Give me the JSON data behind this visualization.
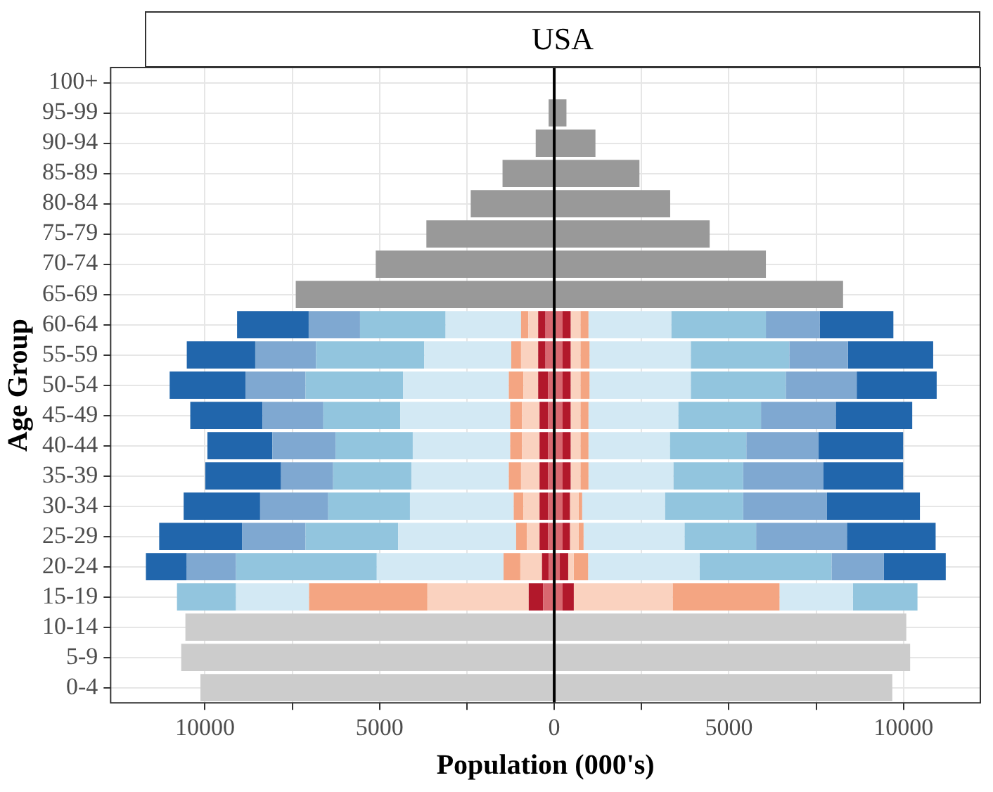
{
  "chart_data": {
    "type": "bar",
    "orientation": "horizontal",
    "stacked": true,
    "title": "USA",
    "xlabel": "Population (000's)",
    "ylabel": "Age Group",
    "categories": [
      "100+",
      "95-99",
      "90-94",
      "85-89",
      "80-84",
      "75-79",
      "70-74",
      "65-69",
      "60-64",
      "55-59",
      "50-54",
      "45-49",
      "40-44",
      "35-39",
      "30-34",
      "25-29",
      "20-24",
      "15-19",
      "10-14",
      "5-9",
      "0-4"
    ],
    "xlim": [
      -12700,
      12200
    ],
    "xticks": [
      {
        "value": -10000,
        "label": "10000"
      },
      {
        "value": -7500,
        "label": null
      },
      {
        "value": -5000,
        "label": "5000"
      },
      {
        "value": -2500,
        "label": null
      },
      0,
      {
        "value": 2500,
        "label": null
      },
      5000,
      {
        "value": 7500,
        "label": null
      },
      10000
    ],
    "grid": true,
    "legend": false,
    "ref_lines": [
      {
        "axis": "x",
        "value": 0,
        "color": "#000000"
      }
    ],
    "series": [
      {
        "color": "#999999",
        "values": [
          null,
          -160,
          -530,
          -1480,
          -2390,
          -3660,
          -5110,
          -7400,
          null,
          null,
          null,
          null,
          null,
          null,
          null,
          null,
          null,
          null,
          null,
          null,
          null
        ]
      },
      {
        "color": "#999999",
        "values": [
          null,
          350,
          1180,
          2440,
          3320,
          4450,
          6060,
          8270,
          null,
          null,
          null,
          null,
          null,
          null,
          null,
          null,
          null,
          null,
          null,
          null,
          null
        ]
      },
      {
        "color": "#cccccc",
        "values": [
          null,
          null,
          null,
          null,
          null,
          null,
          null,
          null,
          null,
          null,
          null,
          null,
          null,
          null,
          null,
          null,
          null,
          null,
          -10560,
          -10680,
          -10130
        ]
      },
      {
        "color": "#cccccc",
        "values": [
          null,
          null,
          null,
          null,
          null,
          null,
          null,
          null,
          null,
          null,
          null,
          null,
          null,
          null,
          null,
          null,
          null,
          null,
          10080,
          10190,
          9680
        ]
      },
      {
        "color": "#d86870",
        "values": [
          null,
          null,
          null,
          null,
          null,
          null,
          null,
          null,
          -250,
          -250,
          -180,
          -180,
          -180,
          -180,
          -180,
          -180,
          -160,
          -320,
          null,
          null,
          null
        ]
      },
      {
        "color": "#d86870",
        "values": [
          null,
          null,
          null,
          null,
          null,
          null,
          null,
          null,
          240,
          240,
          240,
          240,
          240,
          240,
          240,
          240,
          160,
          240,
          null,
          null,
          null
        ]
      },
      {
        "color": "#b2182b",
        "values": [
          null,
          null,
          null,
          null,
          null,
          null,
          null,
          null,
          -210,
          -210,
          -280,
          -240,
          -240,
          -240,
          -240,
          -240,
          -190,
          -410,
          null,
          null,
          null
        ]
      },
      {
        "color": "#b2182b",
        "values": [
          null,
          null,
          null,
          null,
          null,
          null,
          null,
          null,
          230,
          230,
          230,
          230,
          230,
          230,
          210,
          210,
          240,
          320,
          null,
          null,
          null
        ]
      },
      {
        "color": "#fad2bf",
        "values": [
          null,
          null,
          null,
          null,
          null,
          null,
          null,
          null,
          -280,
          -490,
          -420,
          -500,
          -500,
          -530,
          -460,
          -360,
          -620,
          -2900,
          null,
          null,
          null
        ]
      },
      {
        "color": "#fad2bf",
        "values": [
          null,
          null,
          null,
          null,
          null,
          null,
          null,
          null,
          280,
          280,
          280,
          280,
          280,
          280,
          250,
          250,
          160,
          2830,
          null,
          null,
          null
        ]
      },
      {
        "color": "#f4a582",
        "values": [
          null,
          null,
          null,
          null,
          null,
          null,
          null,
          null,
          -210,
          -280,
          -420,
          -340,
          -340,
          -350,
          -280,
          -310,
          -480,
          -3390,
          null,
          null,
          null
        ]
      },
      {
        "color": "#f4a582",
        "values": [
          null,
          null,
          null,
          null,
          null,
          null,
          null,
          null,
          230,
          260,
          260,
          230,
          230,
          230,
          100,
          140,
          410,
          3060,
          null,
          null,
          null
        ]
      },
      {
        "color": "#d3e9f4",
        "values": [
          null,
          null,
          null,
          null,
          null,
          null,
          null,
          null,
          -2160,
          -2490,
          -3030,
          -3150,
          -2790,
          -2790,
          -2970,
          -3380,
          -3630,
          -2090,
          null,
          null,
          null
        ]
      },
      {
        "color": "#d3e9f4",
        "values": [
          null,
          null,
          null,
          null,
          null,
          null,
          null,
          null,
          2370,
          2900,
          2900,
          2570,
          2330,
          2430,
          2370,
          2890,
          3190,
          2100,
          null,
          null,
          null
        ]
      },
      {
        "color": "#92c5de",
        "values": [
          null,
          null,
          null,
          null,
          null,
          null,
          null,
          null,
          -2450,
          -3100,
          -2790,
          -2200,
          -2210,
          -2240,
          -2340,
          -2650,
          -4030,
          -1690,
          null,
          null,
          null
        ]
      },
      {
        "color": "#92c5de",
        "values": [
          null,
          null,
          null,
          null,
          null,
          null,
          null,
          null,
          2710,
          2820,
          2720,
          2370,
          2190,
          2000,
          2240,
          2050,
          3780,
          1850,
          null,
          null,
          null
        ]
      },
      {
        "color": "#7fa8d1",
        "values": [
          null,
          null,
          null,
          null,
          null,
          null,
          null,
          null,
          -1470,
          -1740,
          -1720,
          -1740,
          -1810,
          -1490,
          -1950,
          -1820,
          -1410,
          null,
          null,
          null,
          null
        ]
      },
      {
        "color": "#7fa8d1",
        "values": [
          null,
          null,
          null,
          null,
          null,
          null,
          null,
          null,
          1540,
          1680,
          2030,
          2140,
          2070,
          2300,
          2400,
          2600,
          1500,
          null,
          null,
          null,
          null
        ]
      },
      {
        "color": "#2166ac",
        "values": [
          null,
          null,
          null,
          null,
          null,
          null,
          null,
          null,
          -2050,
          -1960,
          -2170,
          -2070,
          -1860,
          -2170,
          -2190,
          -2370,
          -1170,
          null,
          null,
          null,
          null
        ]
      },
      {
        "color": "#2166ac",
        "values": [
          null,
          null,
          null,
          null,
          null,
          null,
          null,
          null,
          2110,
          2440,
          2290,
          2190,
          2420,
          2280,
          2660,
          2540,
          1770,
          null,
          null,
          null,
          null
        ]
      }
    ]
  }
}
